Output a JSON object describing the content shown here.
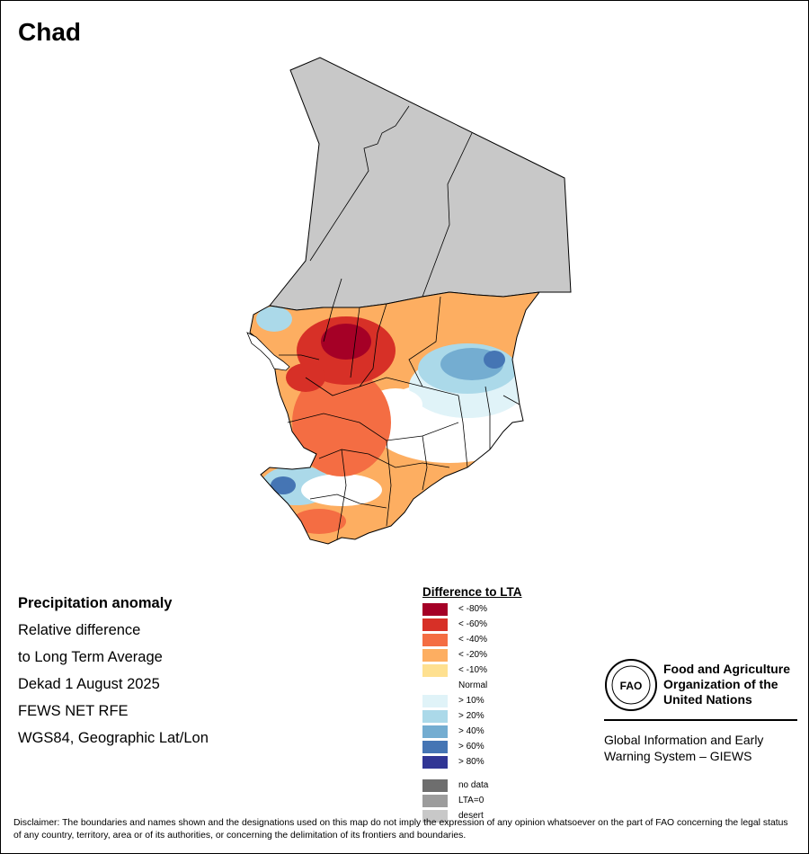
{
  "title": "Chad",
  "info": {
    "heading": "Precipitation anomaly",
    "lines": [
      "Relative difference",
      "to Long Term Average",
      "Dekad 1 August 2025",
      "FEWS NET RFE",
      "WGS84, Geographic Lat/Lon"
    ]
  },
  "legend": {
    "title": "Difference to LTA",
    "items": [
      {
        "label": "< -80%",
        "color": "#a50026"
      },
      {
        "label": "< -60%",
        "color": "#d73027"
      },
      {
        "label": "< -40%",
        "color": "#f46d43"
      },
      {
        "label": "< -20%",
        "color": "#fdae61"
      },
      {
        "label": "< -10%",
        "color": "#fee090"
      },
      {
        "label": "Normal",
        "color": "#ffffff"
      },
      {
        "label": "> 10%",
        "color": "#e0f3f8"
      },
      {
        "label": "> 20%",
        "color": "#abd9e9"
      },
      {
        "label": "> 40%",
        "color": "#74add1"
      },
      {
        "label": "> 60%",
        "color": "#4575b4"
      },
      {
        "label": "> 80%",
        "color": "#313695"
      }
    ],
    "extra": [
      {
        "label": "no data",
        "color": "#6e6e6e"
      },
      {
        "label": "LTA=0",
        "color": "#9c9c9c"
      },
      {
        "label": "desert",
        "color": "#c8c8c8"
      }
    ]
  },
  "org": {
    "logo_text": "FAO",
    "name_lines": [
      "Food and Agriculture",
      "Organization of the",
      "United Nations"
    ],
    "giews_lines": [
      "Global Information and Early",
      "Warning System – GIEWS"
    ]
  },
  "disclaimer": "Disclaimer: The boundaries and names shown and the designations used on this map do not imply the expression of any opinion whatsoever on the part of FAO concerning the legal status of any country, territory, area or of its authorities, or concerning the delimitation of its frontiers and boundaries.",
  "colors": {
    "desert": "#c8c8c8",
    "border": "#000000"
  }
}
